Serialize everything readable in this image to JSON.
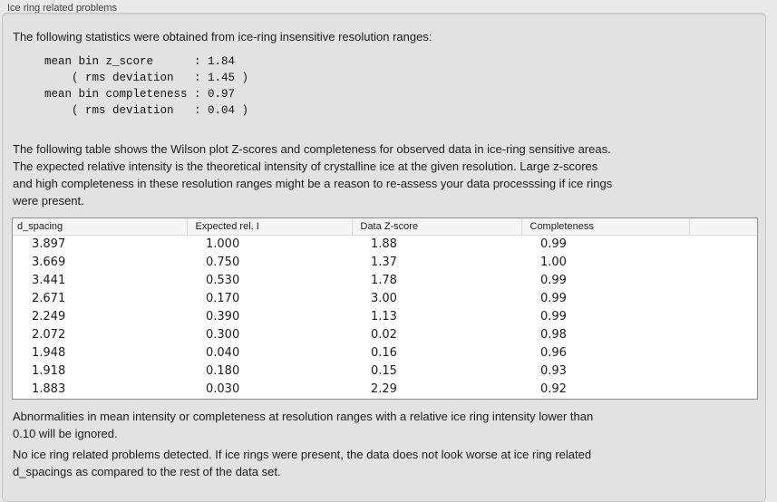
{
  "panel": {
    "title": "Ice ring related problems"
  },
  "colors": {
    "window_background": "#e9e9e9",
    "panel_background": "#e2e2e2",
    "table_background": "#ffffff",
    "table_border": "#8f8f8f",
    "text": "#1c1c1c"
  },
  "stats": {
    "intro": "The following statistics were obtained from ice-ring insensitive resolution ranges:",
    "block": "mean bin z_score      : 1.84\n    ( rms deviation   : 1.45 )\nmean bin completeness : 0.97\n    ( rms deviation   : 0.04 )"
  },
  "table_intro": "The following table shows the Wilson plot Z-scores and completeness for observed data in ice-ring sensitive areas.\nThe expected relative intensity is the theoretical intensity of crystalline ice at the given resolution. Large z-scores\nand high completeness in these resolution ranges might be a reason to re-assess your data processsing if ice rings\nwere present.",
  "table": {
    "columns": [
      "d_spacing",
      "Expected rel. I",
      "Data Z-score",
      "Completeness",
      ""
    ],
    "rows": [
      [
        "3.897",
        "1.000",
        "1.88",
        "0.99",
        ""
      ],
      [
        "3.669",
        "0.750",
        "1.37",
        "1.00",
        ""
      ],
      [
        "3.441",
        "0.530",
        "1.78",
        "0.99",
        ""
      ],
      [
        "2.671",
        "0.170",
        "3.00",
        "0.99",
        ""
      ],
      [
        "2.249",
        "0.390",
        "1.13",
        "0.99",
        ""
      ],
      [
        "2.072",
        "0.300",
        "0.02",
        "0.98",
        ""
      ],
      [
        "1.948",
        "0.040",
        "0.16",
        "0.96",
        ""
      ],
      [
        "1.918",
        "0.180",
        "0.15",
        "0.93",
        ""
      ],
      [
        "1.883",
        "0.030",
        "2.29",
        "0.92",
        ""
      ]
    ]
  },
  "ignore_note": "Abnormalities in mean intensity or completeness at resolution ranges with a relative ice ring intensity lower than\n0.10 will be ignored.",
  "conclusion": "No ice ring related problems detected. If ice rings were present, the data does not look worse at ice ring related\nd_spacings as compared to the rest of the data set."
}
